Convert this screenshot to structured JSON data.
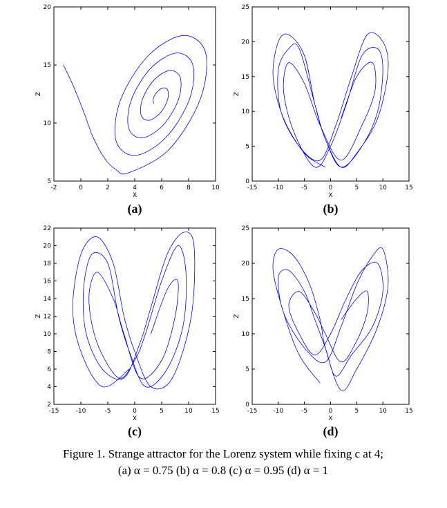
{
  "chart_data": [
    {
      "type": "line",
      "label": "(a)",
      "xlabel": "X",
      "ylabel": "Z",
      "xlim": [
        -2,
        10
      ],
      "ylim": [
        5,
        20
      ],
      "xticks": [
        -2,
        0,
        2,
        4,
        6,
        8,
        10
      ],
      "yticks": [
        5,
        10,
        15,
        20
      ],
      "series": [
        {
          "color": "#0000ff",
          "x": [
            -1.3,
            -0.6,
            0.2,
            0.9,
            1.8,
            2.6,
            3.52,
            6.51,
            8.85,
            9.26,
            7.62,
            4.99,
            2.95,
            2.61,
            4.04,
            6.31,
            8.05,
            8.32,
            7.1,
            5.19,
            3.75,
            3.55,
            4.57,
            6.11,
            7.24,
            7.38,
            6.57,
            5.39,
            4.56,
            4.49,
            5.09,
            5.91,
            6.44,
            6.44,
            6.05,
            5.59,
            5.36,
            5.43
          ],
          "values": [
            15,
            13.3,
            11,
            8.8,
            6.9,
            6.0,
            5.7,
            7.68,
            12,
            16.05,
            17.54,
            15.79,
            12,
            8.48,
            7.21,
            8.75,
            12,
            14.98,
            16.03,
            14.72,
            12,
            9.55,
            8.72,
            9.82,
            12,
            13.92,
            14.52,
            13.65,
            12,
            10.62,
            10.24,
            10.89,
            12,
            12.85,
            13.01,
            12.58,
            12,
            11.69
          ]
        }
      ]
    },
    {
      "type": "line",
      "label": "(b)",
      "xlabel": "X",
      "ylabel": "Z",
      "xlim": [
        -15,
        15
      ],
      "ylim": [
        0,
        25
      ],
      "xticks": [
        -15,
        -10,
        -5,
        0,
        5,
        10,
        15
      ],
      "yticks": [
        0,
        5,
        10,
        15,
        20,
        25
      ],
      "series": [
        {
          "color": "#0000ff",
          "x": [
            -1,
            -5,
            -9,
            -11,
            -10,
            -8,
            -5,
            -3,
            -1,
            2,
            5,
            9,
            11,
            10,
            7,
            4,
            1,
            -2,
            -6,
            -9.5,
            -10,
            -8,
            -6,
            -3,
            -1,
            2,
            6,
            9,
            10,
            9,
            6,
            3,
            0,
            -3,
            -7,
            -9,
            -8,
            -5,
            -2,
            2,
            6,
            8.5,
            8,
            5,
            2
          ],
          "values": [
            2,
            4,
            9,
            15,
            20,
            21,
            18,
            11,
            6,
            2,
            4,
            9,
            16,
            20,
            21,
            15,
            8,
            3,
            5,
            10,
            16,
            19,
            19,
            11,
            6,
            2,
            5,
            10,
            16,
            19,
            18,
            11,
            5,
            2,
            7,
            13,
            17,
            14,
            8,
            3,
            8,
            13,
            17,
            15,
            9
          ]
        }
      ]
    },
    {
      "type": "line",
      "label": "(c)",
      "xlabel": "X",
      "ylabel": "Z",
      "xlim": [
        -15,
        15
      ],
      "ylim": [
        2,
        22
      ],
      "xticks": [
        -15,
        -10,
        -5,
        0,
        5,
        10,
        15
      ],
      "yticks": [
        2,
        4,
        6,
        8,
        10,
        12,
        14,
        16,
        18,
        20,
        22
      ],
      "series": [
        {
          "color": "#0000ff",
          "x": [
            -1,
            -6,
            -10,
            -11.5,
            -10,
            -7,
            -4,
            -2,
            0,
            3,
            7,
            10.5,
            11,
            9,
            6,
            3,
            1,
            -2,
            -6,
            -9,
            -9.5,
            -8,
            -5,
            -3,
            -1,
            2,
            6,
            9,
            9.5,
            8,
            5,
            2,
            0,
            -3,
            -7,
            -8.5,
            -7,
            -4,
            -2,
            1,
            5,
            7.5,
            8,
            6,
            3
          ],
          "values": [
            6,
            4,
            8,
            13,
            19,
            21,
            18,
            12,
            8,
            4,
            5,
            12,
            20,
            21.5,
            19,
            13,
            9,
            5,
            6,
            10,
            15,
            19,
            18,
            12,
            8,
            4,
            6,
            11,
            17,
            20,
            16,
            10,
            7,
            5,
            9,
            14,
            17,
            14,
            10,
            5,
            7,
            12,
            16,
            15,
            10
          ]
        }
      ]
    },
    {
      "type": "line",
      "label": "(d)",
      "xlabel": "X",
      "ylabel": "Z",
      "xlim": [
        -15,
        15
      ],
      "ylim": [
        0,
        25
      ],
      "xticks": [
        -15,
        -10,
        -5,
        0,
        5,
        10,
        15
      ],
      "yticks": [
        0,
        5,
        10,
        15,
        20,
        25
      ],
      "series": [
        {
          "color": "#0000ff",
          "x": [
            -2,
            -6,
            -9,
            -11,
            -10,
            -7,
            -4,
            -2,
            -1,
            2,
            5,
            9,
            11,
            10,
            8,
            5,
            2,
            -1,
            -5,
            -9,
            -10,
            -8,
            -5,
            -3,
            -1,
            1,
            4,
            8,
            10,
            9,
            6,
            3,
            0,
            -3,
            -6,
            -8,
            -6,
            -3,
            -1,
            2,
            5,
            7,
            7,
            5,
            2
          ],
          "values": [
            3,
            7,
            13,
            19,
            22,
            21,
            17,
            12,
            8,
            2,
            5,
            11,
            17,
            22,
            21,
            17,
            11,
            6,
            8,
            13,
            18,
            19,
            16,
            12,
            8,
            4,
            7,
            11,
            16,
            20,
            19,
            15,
            10,
            7,
            10,
            14,
            16,
            13,
            10,
            6,
            9,
            13,
            16,
            15,
            12
          ]
        }
      ]
    }
  ],
  "caption": {
    "lines": [
      "Figure 1. Strange attractor for the Lorenz system while fixing c at 4;",
      "(a) α = 0.75 (b) α = 0.8 (c) α = 0.95 (d) α = 1"
    ]
  }
}
